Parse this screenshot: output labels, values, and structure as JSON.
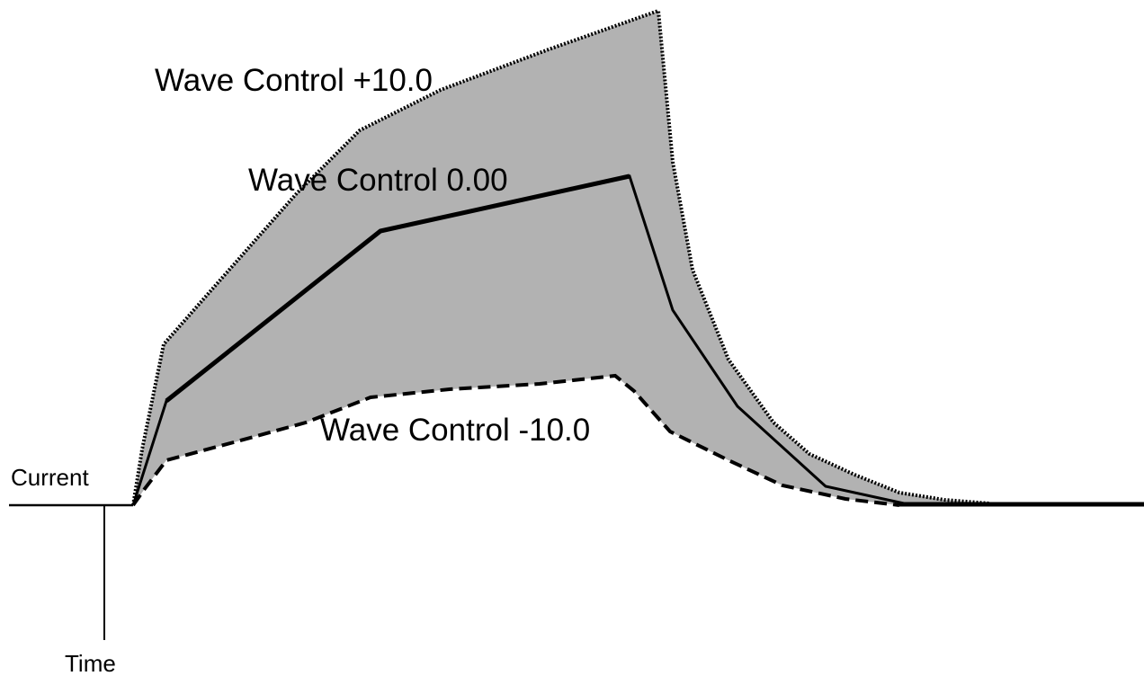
{
  "labels": {
    "wave_plus": "Wave Control +10.0",
    "wave_zero": "Wave Control 0.00",
    "wave_minus": "Wave Control -10.0",
    "current": "Current",
    "time": "Time"
  },
  "colors": {
    "fill": "#b2b2b2",
    "stroke": "#000000",
    "background": "#ffffff"
  }
}
